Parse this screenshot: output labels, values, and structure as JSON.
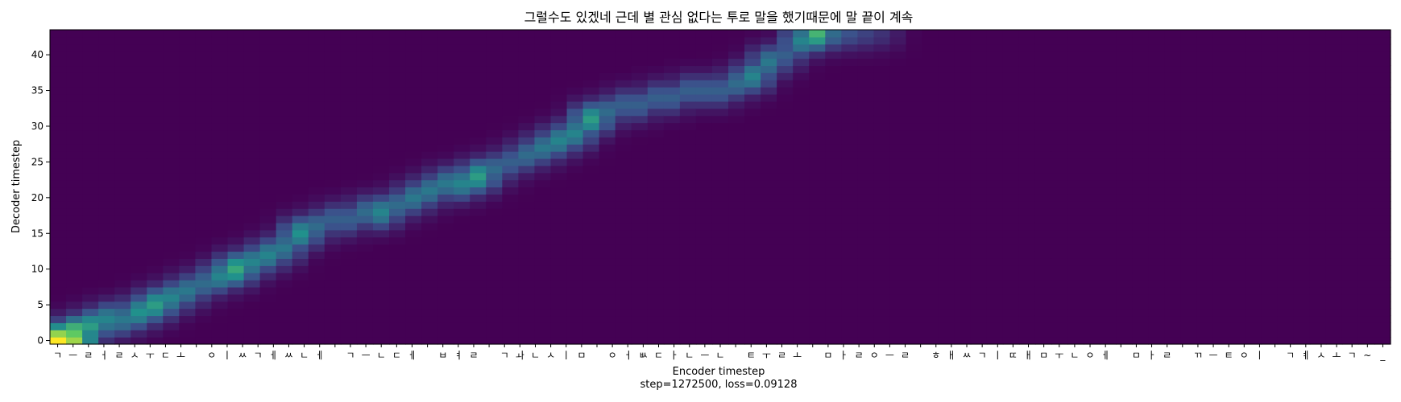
{
  "chart_data": {
    "type": "heatmap",
    "title": "그럴수도 있겠네 근데 별 관심 없다는 투로 말을 했기때문에 말 끝이 계속",
    "xlabel": "Encoder timestep",
    "subtitle": "step=1272500, loss=0.09128",
    "ylabel": "Decoder timestep",
    "y_ticks": [
      0,
      5,
      10,
      15,
      20,
      25,
      30,
      35,
      40
    ],
    "y_range": [
      0,
      44
    ],
    "x_range": [
      0,
      83
    ],
    "encoder_tokens": [
      "ㄱ",
      "ㅡ",
      "ㄹ",
      "ㅓ",
      "ㄹ",
      "ㅅ",
      "ㅜ",
      "ㄷ",
      "ㅗ",
      " ",
      "ㅇ",
      "ㅣ",
      "ㅆ",
      "ㄱ",
      "ㅔ",
      "ㅆ",
      "ㄴ",
      "ㅔ",
      " ",
      "ㄱ",
      "ㅡ",
      "ㄴ",
      "ㄷ",
      "ㅔ",
      " ",
      "ㅂ",
      "ㅕ",
      "ㄹ",
      " ",
      "ㄱ",
      "ㅘ",
      "ㄴ",
      "ㅅ",
      "ㅣ",
      "ㅁ",
      " ",
      "ㅇ",
      "ㅓ",
      "ㅄ",
      "ㄷ",
      "ㅏ",
      "ㄴ",
      "ㅡ",
      "ㄴ",
      " ",
      "ㅌ",
      "ㅜ",
      "ㄹ",
      "ㅗ",
      " ",
      "ㅁ",
      "ㅏ",
      "ㄹ",
      "ㅇ",
      "ㅡ",
      "ㄹ",
      " ",
      "ㅎ",
      "ㅐ",
      "ㅆ",
      "ㄱ",
      "ㅣ",
      "ㄸ",
      "ㅐ",
      "ㅁ",
      "ㅜ",
      "ㄴ",
      "ㅇ",
      "ㅔ",
      " ",
      "ㅁ",
      "ㅏ",
      "ㄹ",
      " ",
      "ㄲ",
      "ㅡ",
      "ㅌ",
      "ㅇ",
      "ㅣ",
      " ",
      "ㄱ",
      "ㅖ",
      "ㅅ",
      "ㅗ",
      "ㄱ",
      "~",
      "_"
    ],
    "colormap": "viridis",
    "alignment_path": [
      [
        0,
        0,
        1.0
      ],
      [
        1,
        0,
        0.85
      ],
      [
        1,
        1,
        0.75
      ],
      [
        2,
        2,
        0.55
      ],
      [
        3,
        3,
        0.45
      ],
      [
        4,
        3,
        0.4
      ],
      [
        5,
        4,
        0.5
      ],
      [
        6,
        5,
        0.55
      ],
      [
        7,
        6,
        0.45
      ],
      [
        8,
        7,
        0.4
      ],
      [
        9,
        8,
        0.35
      ],
      [
        10,
        9,
        0.45
      ],
      [
        11,
        10,
        0.6
      ],
      [
        12,
        11,
        0.45
      ],
      [
        13,
        12,
        0.45
      ],
      [
        14,
        13,
        0.4
      ],
      [
        15,
        15,
        0.5
      ],
      [
        16,
        16,
        0.35
      ],
      [
        17,
        17,
        0.3
      ],
      [
        18,
        17,
        0.3
      ],
      [
        19,
        18,
        0.35
      ],
      [
        20,
        18,
        0.45
      ],
      [
        21,
        19,
        0.35
      ],
      [
        22,
        20,
        0.4
      ],
      [
        23,
        21,
        0.4
      ],
      [
        24,
        22,
        0.4
      ],
      [
        25,
        22,
        0.45
      ],
      [
        26,
        23,
        0.55
      ],
      [
        27,
        24,
        0.35
      ],
      [
        28,
        25,
        0.3
      ],
      [
        29,
        26,
        0.35
      ],
      [
        30,
        27,
        0.4
      ],
      [
        31,
        28,
        0.45
      ],
      [
        32,
        29,
        0.45
      ],
      [
        33,
        31,
        0.55
      ],
      [
        34,
        32,
        0.35
      ],
      [
        35,
        33,
        0.3
      ],
      [
        36,
        33,
        0.3
      ],
      [
        37,
        34,
        0.3
      ],
      [
        38,
        34,
        0.3
      ],
      [
        39,
        35,
        0.3
      ],
      [
        40,
        35,
        0.3
      ],
      [
        41,
        35,
        0.3
      ],
      [
        42,
        36,
        0.35
      ],
      [
        43,
        37,
        0.45
      ],
      [
        44,
        39,
        0.4
      ],
      [
        45,
        40,
        0.3
      ],
      [
        46,
        42,
        0.45
      ],
      [
        47,
        43,
        0.65
      ],
      [
        48,
        43,
        0.35
      ],
      [
        49,
        43,
        0.25
      ],
      [
        50,
        43,
        0.2
      ],
      [
        51,
        43,
        0.15
      ]
    ]
  }
}
